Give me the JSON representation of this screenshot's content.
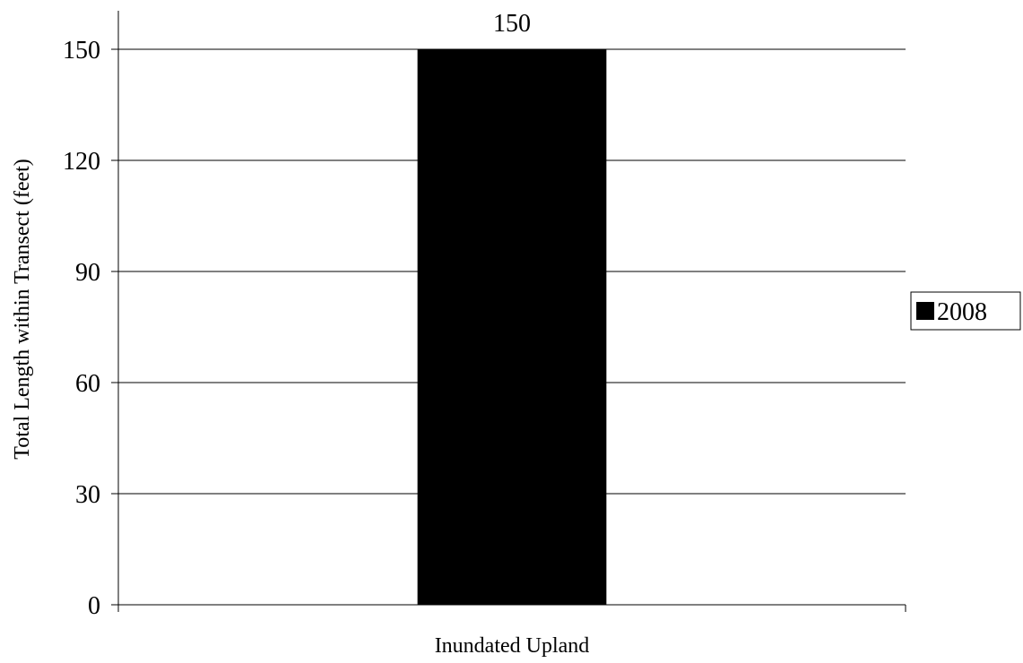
{
  "chart_data": {
    "type": "bar",
    "title": "",
    "xlabel": "",
    "ylabel": "Total Length within Transect (feet)",
    "ylim": [
      0,
      150
    ],
    "yticks": [
      0,
      30,
      60,
      90,
      120,
      150
    ],
    "categories": [
      "Inundated Upland"
    ],
    "series": [
      {
        "name": "2008",
        "values": [
          150
        ],
        "color": "#000000"
      }
    ],
    "data_labels": [
      "150"
    ],
    "grid": true,
    "legend_position": "right"
  }
}
